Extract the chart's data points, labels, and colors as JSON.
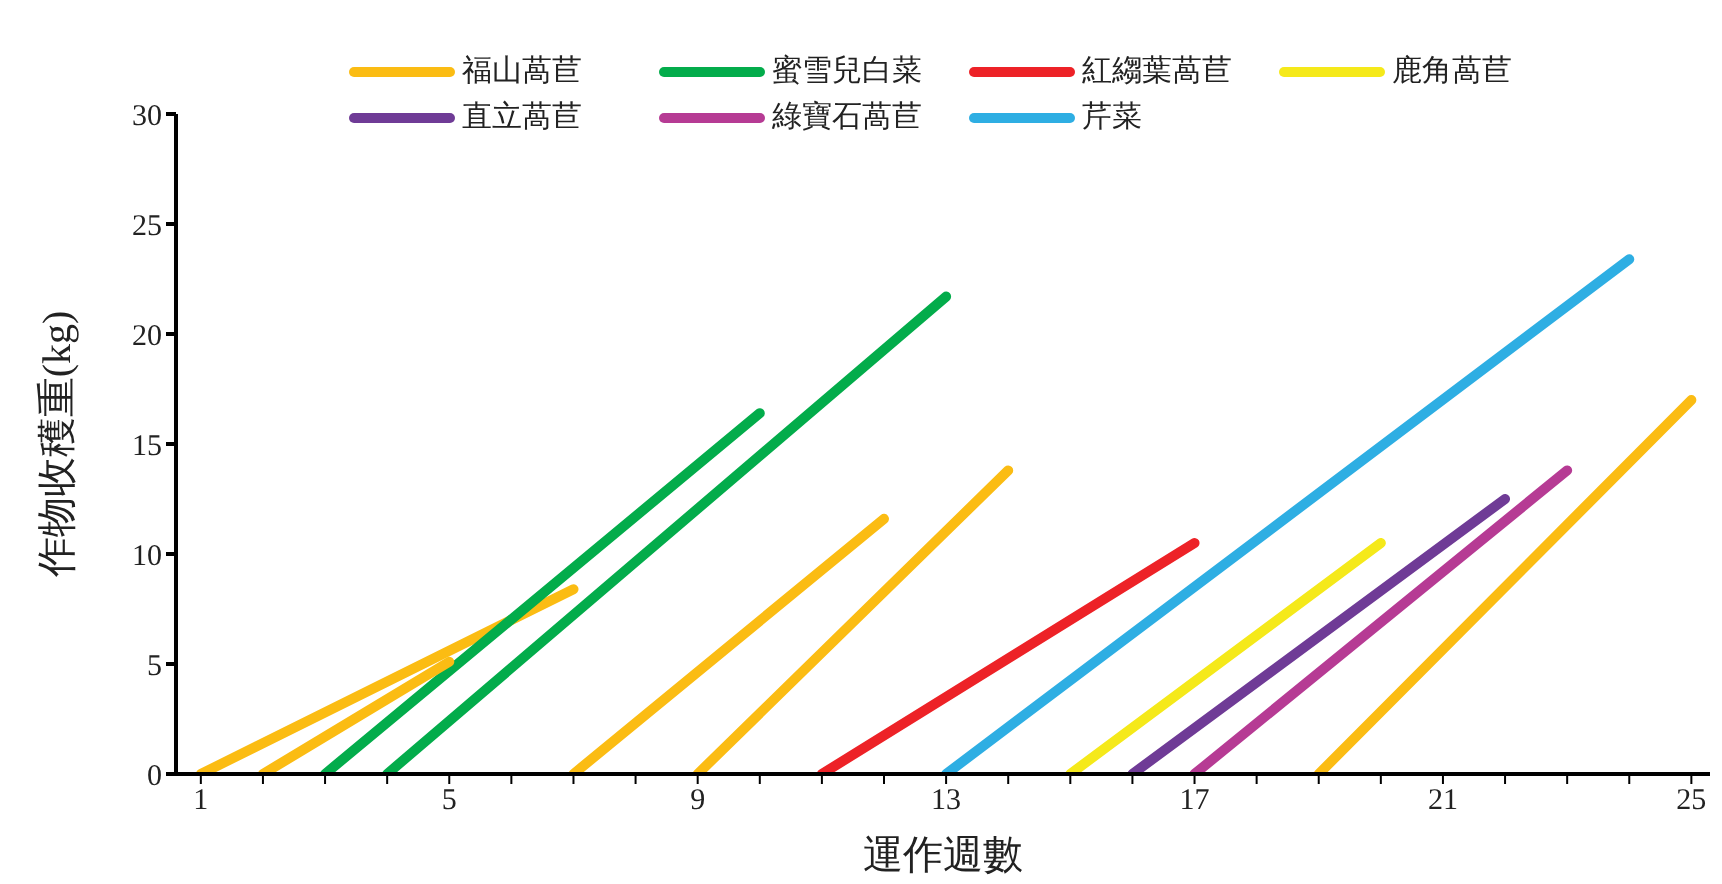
{
  "chart_data": {
    "type": "line",
    "xlabel": "運作週數",
    "ylabel": "作物收穫重(kg)",
    "xlim": [
      0.6,
      25.3
    ],
    "ylim": [
      0,
      30
    ],
    "xticks": [
      1,
      {
        "value": 2,
        "label": null
      },
      {
        "value": 3,
        "label": null
      },
      {
        "value": 4,
        "label": null
      },
      5,
      {
        "value": 6,
        "label": null
      },
      {
        "value": 7,
        "label": null
      },
      {
        "value": 8,
        "label": null
      },
      9,
      {
        "value": 10,
        "label": null
      },
      {
        "value": 11,
        "label": null
      },
      {
        "value": 12,
        "label": null
      },
      13,
      {
        "value": 14,
        "label": null
      },
      {
        "value": 15,
        "label": null
      },
      {
        "value": 16,
        "label": null
      },
      17,
      {
        "value": 18,
        "label": null
      },
      {
        "value": 19,
        "label": null
      },
      {
        "value": 20,
        "label": null
      },
      21,
      {
        "value": 22,
        "label": null
      },
      {
        "value": 23,
        "label": null
      },
      {
        "value": 24,
        "label": null
      },
      25
    ],
    "yticks": [
      0,
      5,
      10,
      15,
      20,
      25,
      30
    ],
    "grid": false,
    "legend": "top",
    "marker": "none",
    "line_style": "solid",
    "series": [
      {
        "name": "福山萵苣",
        "color": "#fbbc13",
        "x": [
          1,
          7
        ],
        "values": [
          0,
          8.4
        ]
      },
      {
        "name": "蜜雪兒白菜",
        "color": "#03ac4b",
        "x": [
          3,
          10
        ],
        "values": [
          0,
          16.4
        ]
      },
      {
        "name": "紅縐葉萵苣",
        "color": "#ed2227",
        "x": [
          11,
          17
        ],
        "values": [
          0,
          10.5
        ]
      },
      {
        "name": "鹿角萵苣",
        "color": "#f5e91a",
        "x": [
          15,
          20
        ],
        "values": [
          0,
          10.5
        ]
      },
      {
        "name": "直立萵苣",
        "color": "#6f3b96",
        "x": [
          16,
          22
        ],
        "values": [
          0,
          12.5
        ]
      },
      {
        "name": "綠寶石萵苣",
        "color": "#b63b94",
        "x": [
          17,
          23
        ],
        "values": [
          0,
          13.8
        ]
      },
      {
        "name": "芹菜",
        "color": "#2eaee3",
        "x": [
          13,
          24
        ],
        "values": [
          0,
          23.4
        ]
      },
      {
        "color": "#fbbc13",
        "x": [
          2,
          5
        ],
        "values": [
          0,
          5.1
        ]
      },
      {
        "color": "#03ac4b",
        "x": [
          4,
          13
        ],
        "values": [
          0,
          21.7
        ]
      },
      {
        "color": "#fbbc13",
        "x": [
          7,
          12
        ],
        "values": [
          0,
          11.6
        ]
      },
      {
        "color": "#fbbc13",
        "x": [
          9,
          14
        ],
        "values": [
          0,
          13.8
        ]
      },
      {
        "color": "#fbbc13",
        "x": [
          19,
          25
        ],
        "values": [
          0,
          17
        ]
      }
    ]
  }
}
